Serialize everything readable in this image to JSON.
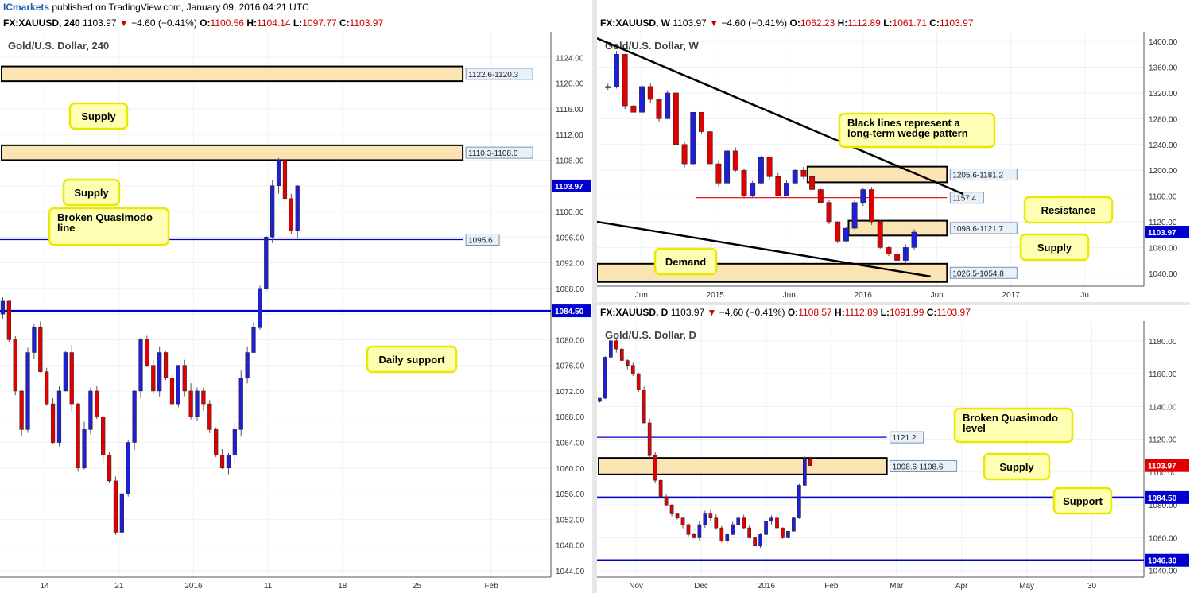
{
  "publisher": {
    "brand": "ICmarkets",
    "text": "published on TradingView.com, January 09, 2016 04:21 UTC"
  },
  "colors": {
    "bull": "#1f1fd6",
    "bear": "#e00000",
    "zone_fill": "#fbe4b4",
    "zone_border": "#000000",
    "callout_fill": "#ffffb4",
    "callout_border": "#e8e800",
    "support_line": "#0000d0",
    "resistance_line": "#e00000",
    "price_tag": "#e00000"
  },
  "panels": [
    {
      "id": "h4",
      "header": {
        "symbol": "FX:XAUUSD, 240",
        "price": "1103.97",
        "change": "−4.60 (−0.41%)",
        "o": "1100.56",
        "h": "1104.14",
        "l": "1097.77",
        "c": "1103.97"
      },
      "title": "Gold/U.S. Dollar, 240",
      "price_badge": "1103.97",
      "level_badge": "1084.50",
      "zones": [
        {
          "label": "1122.6-1120.3",
          "from": 1120.3,
          "to": 1122.6
        },
        {
          "label": "1110.3-1108.0",
          "from": 1108.0,
          "to": 1110.3
        }
      ],
      "lines": [
        {
          "label": "1095.6",
          "value": 1095.6,
          "kind": "thin-blue"
        },
        {
          "label": "1084.50",
          "value": 1084.5,
          "kind": "thick-blue"
        }
      ],
      "callouts": [
        "Supply",
        "Supply",
        "Broken Quasimodo\nline",
        "Daily support"
      ]
    },
    {
      "id": "weekly",
      "header": {
        "symbol": "FX:XAUUSD, W",
        "price": "1103.97",
        "change": "−4.60 (−0.41%)",
        "o": "1062.23",
        "h": "1112.89",
        "l": "1061.71",
        "c": "1103.97"
      },
      "title": "Gold/U.S. Dollar, W",
      "price_badge": "1103.97",
      "zones": [
        {
          "label": "1205.6-1181.2",
          "from": 1181.2,
          "to": 1205.6
        },
        {
          "label": "1098.6-1121.7",
          "from": 1098.6,
          "to": 1121.7
        },
        {
          "label": "1026.5-1054.8",
          "from": 1026.5,
          "to": 1054.8
        }
      ],
      "lines": [
        {
          "label": "1157.4",
          "value": 1157.4,
          "kind": "thin-red"
        }
      ],
      "callouts": [
        "Black lines represent a\nlong-term wedge pattern",
        "Resistance",
        "Supply",
        "Demand"
      ]
    },
    {
      "id": "daily",
      "header": {
        "symbol": "FX:XAUUSD, D",
        "price": "1103.97",
        "change": "−4.60 (−0.41%)",
        "o": "1108.57",
        "h": "1112.89",
        "l": "1091.99",
        "c": "1103.97"
      },
      "title": "Gold/U.S. Dollar, D",
      "price_badge": "1103.97",
      "zones": [
        {
          "label": "1098.6-1108.6",
          "from": 1098.6,
          "to": 1108.6
        }
      ],
      "lines": [
        {
          "label": "1121.2",
          "value": 1121.2,
          "kind": "thin-blue"
        },
        {
          "label": "1084.50",
          "value": 1084.5,
          "kind": "thick-blue"
        },
        {
          "label": "1046.30",
          "value": 1046.3,
          "kind": "thick-blue"
        }
      ],
      "callouts": [
        "Broken Quasimodo\nlevel",
        "Supply",
        "Support"
      ]
    }
  ],
  "chart_data": [
    {
      "type": "line",
      "title": "Gold/U.S. Dollar, 240",
      "xlabel": "",
      "ylabel": "",
      "x_ticks": [
        "14",
        "21",
        "2016",
        "11",
        "18",
        "25",
        "Feb"
      ],
      "y_ticks": [
        1044,
        1048,
        1052,
        1056,
        1060,
        1064,
        1068,
        1072,
        1076,
        1080,
        1084,
        1088,
        1092,
        1096,
        1100,
        1104,
        1108,
        1112,
        1116,
        1120,
        1124
      ],
      "ylim": [
        1043,
        1128
      ],
      "series": [
        {
          "values": [
            1086,
            1080,
            1072,
            1066,
            1078,
            1082,
            1075,
            1070,
            1064,
            1072,
            1078,
            1070,
            1060,
            1066,
            1072,
            1068,
            1062,
            1058,
            1050,
            1056,
            1064,
            1072,
            1080,
            1076,
            1072,
            1078,
            1074,
            1070,
            1076,
            1072,
            1068,
            1072,
            1070,
            1066,
            1062,
            1060,
            1062,
            1066,
            1074,
            1078,
            1082,
            1088,
            1096,
            1104,
            1108,
            1102,
            1097,
            1103.97
          ]
        }
      ],
      "grid": true
    },
    {
      "type": "line",
      "title": "Gold/U.S. Dollar, W",
      "xlabel": "",
      "ylabel": "",
      "x_ticks": [
        "Jun",
        "2015",
        "Jun",
        "2016",
        "Jun",
        "2017",
        "Ju"
      ],
      "y_ticks": [
        1040,
        1080,
        1120,
        1160,
        1200,
        1240,
        1280,
        1320,
        1360,
        1400
      ],
      "ylim": [
        1020,
        1415
      ],
      "series": [
        {
          "values": [
            1330,
            1380,
            1300,
            1290,
            1330,
            1310,
            1280,
            1320,
            1240,
            1210,
            1290,
            1260,
            1210,
            1180,
            1230,
            1200,
            1160,
            1180,
            1220,
            1190,
            1160,
            1180,
            1200,
            1190,
            1170,
            1150,
            1120,
            1090,
            1110,
            1150,
            1170,
            1120,
            1080,
            1070,
            1060,
            1080,
            1103.97
          ]
        }
      ],
      "grid": true
    },
    {
      "type": "line",
      "title": "Gold/U.S. Dollar, D",
      "xlabel": "",
      "ylabel": "",
      "x_ticks": [
        "Nov",
        "Dec",
        "2016",
        "Feb",
        "Mar",
        "Apr",
        "May",
        "30"
      ],
      "y_ticks": [
        1040,
        1060,
        1080,
        1100,
        1120,
        1140,
        1160,
        1180
      ],
      "ylim": [
        1036,
        1192
      ],
      "series": [
        {
          "values": [
            1145,
            1170,
            1180,
            1175,
            1168,
            1165,
            1160,
            1150,
            1130,
            1110,
            1095,
            1085,
            1080,
            1075,
            1072,
            1068,
            1062,
            1060,
            1068,
            1075,
            1072,
            1066,
            1058,
            1062,
            1068,
            1072,
            1066,
            1060,
            1055,
            1062,
            1070,
            1072,
            1066,
            1060,
            1064,
            1072,
            1092,
            1108,
            1103.97
          ]
        }
      ],
      "grid": true
    }
  ]
}
